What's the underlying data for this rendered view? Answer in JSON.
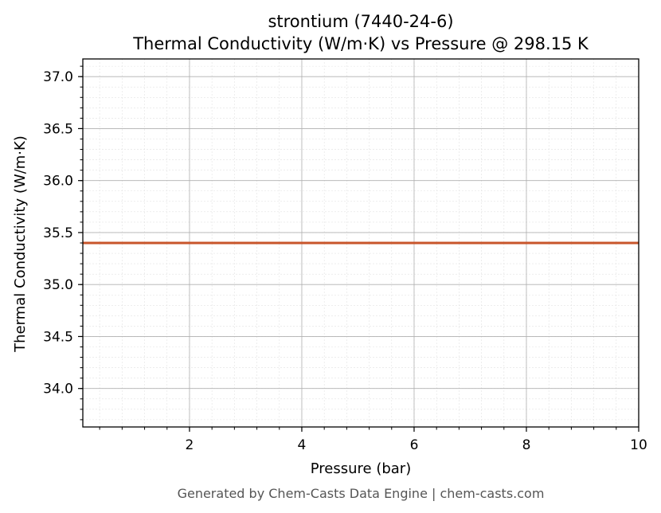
{
  "chart_data": {
    "type": "line",
    "title": "strontium (7440-24-6)",
    "subtitle": "Thermal Conductivity (W/m·K) vs Pressure @ 298.15 K",
    "xlabel": "Pressure (bar)",
    "ylabel": "Thermal Conductivity (W/m·K)",
    "xlim": [
      0.1,
      10
    ],
    "ylim": [
      33.63,
      37.17
    ],
    "xticks": [
      2,
      4,
      6,
      8,
      10
    ],
    "xtick_labels": [
      "2",
      "4",
      "6",
      "8",
      "10"
    ],
    "yticks": [
      34.0,
      34.5,
      35.0,
      35.5,
      36.0,
      36.5,
      37.0
    ],
    "ytick_labels": [
      "34.0",
      "34.5",
      "35.0",
      "35.5",
      "36.0",
      "36.5",
      "37.0"
    ],
    "grid": true,
    "series": [
      {
        "x": [
          0.1,
          10
        ],
        "y": [
          35.4,
          35.4
        ],
        "color": "#c8552b"
      }
    ]
  },
  "footer": "Generated by Chem-Casts Data Engine | chem-casts.com"
}
